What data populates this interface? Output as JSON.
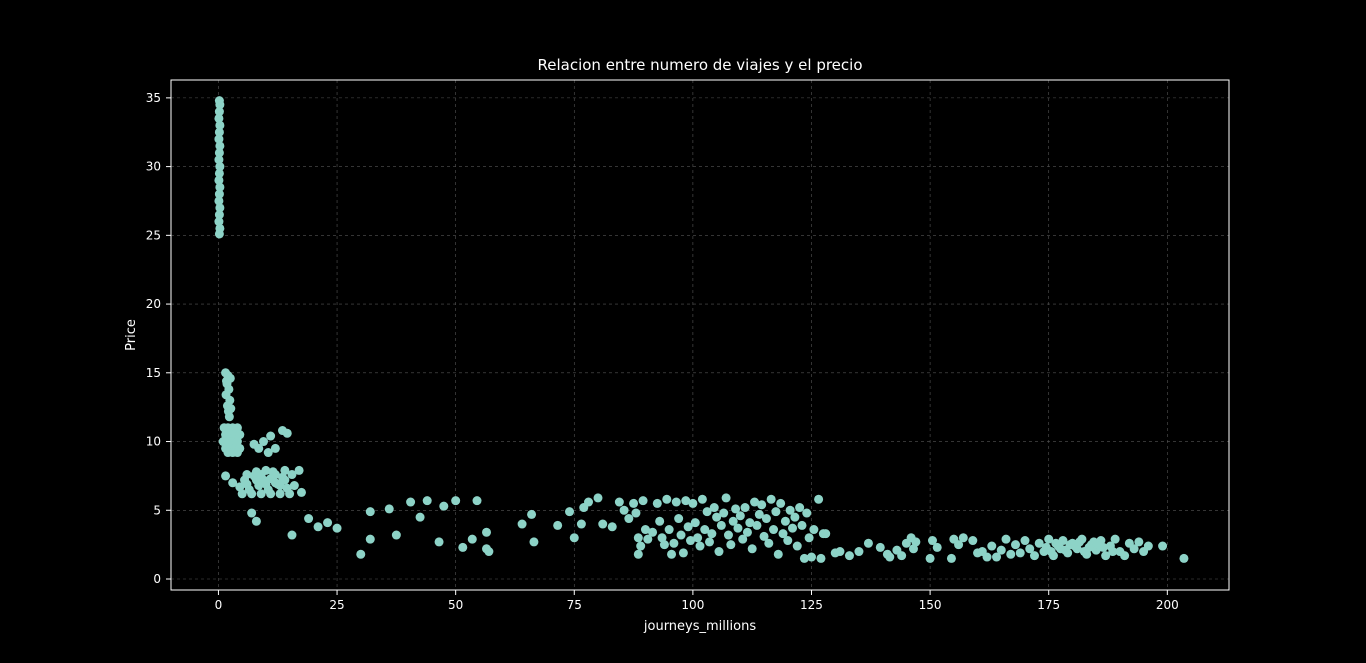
{
  "chart_data": {
    "type": "scatter",
    "title": "Relacion entre numero de viajes y el precio",
    "xlabel": "journeys_millions",
    "ylabel": "Price",
    "xlim": [
      -10,
      213
    ],
    "ylim": [
      -0.8,
      36.3
    ],
    "xticks": [
      0,
      25,
      50,
      75,
      100,
      125,
      150,
      175,
      200
    ],
    "yticks": [
      0,
      5,
      10,
      15,
      20,
      25,
      30,
      35
    ],
    "grid": true,
    "point_color": "#8dd3c7",
    "background": "#000000",
    "points": [
      [
        0.2,
        34.8
      ],
      [
        0.3,
        34.5
      ],
      [
        0.2,
        34.0
      ],
      [
        0.1,
        33.5
      ],
      [
        0.3,
        33.0
      ],
      [
        0.2,
        32.5
      ],
      [
        0.1,
        32.0
      ],
      [
        0.3,
        31.5
      ],
      [
        0.2,
        31.0
      ],
      [
        0.1,
        30.5
      ],
      [
        0.3,
        30.0
      ],
      [
        0.2,
        29.5
      ],
      [
        0.1,
        29.0
      ],
      [
        0.3,
        28.5
      ],
      [
        0.2,
        28.0
      ],
      [
        0.1,
        27.5
      ],
      [
        0.3,
        27.0
      ],
      [
        0.2,
        26.5
      ],
      [
        0.1,
        26.0
      ],
      [
        0.3,
        25.5
      ],
      [
        0.2,
        25.1
      ],
      [
        1.5,
        15.0
      ],
      [
        2.0,
        14.8
      ],
      [
        2.5,
        14.6
      ],
      [
        1.8,
        14.2
      ],
      [
        2.2,
        13.8
      ],
      [
        1.6,
        13.4
      ],
      [
        2.4,
        13.0
      ],
      [
        1.9,
        12.6
      ],
      [
        2.1,
        12.2
      ],
      [
        2.3,
        11.8
      ],
      [
        1.7,
        14.4
      ],
      [
        2.6,
        12.4
      ],
      [
        1.2,
        11.0
      ],
      [
        2.0,
        11.0
      ],
      [
        3.0,
        11.0
      ],
      [
        4.0,
        11.0
      ],
      [
        1.5,
        10.5
      ],
      [
        2.5,
        10.5
      ],
      [
        3.5,
        10.5
      ],
      [
        4.5,
        10.5
      ],
      [
        1.0,
        10.0
      ],
      [
        2.0,
        10.0
      ],
      [
        3.0,
        10.0
      ],
      [
        4.0,
        10.0
      ],
      [
        1.5,
        9.5
      ],
      [
        2.5,
        9.5
      ],
      [
        3.5,
        9.5
      ],
      [
        4.5,
        9.5
      ],
      [
        2.0,
        9.2
      ],
      [
        3.0,
        9.2
      ],
      [
        4.0,
        9.2
      ],
      [
        7.5,
        9.8
      ],
      [
        8.5,
        9.5
      ],
      [
        9.5,
        10.0
      ],
      [
        11.0,
        10.4
      ],
      [
        10.5,
        9.2
      ],
      [
        12.0,
        9.5
      ],
      [
        13.5,
        10.8
      ],
      [
        14.5,
        10.6
      ],
      [
        1.5,
        7.5
      ],
      [
        3.0,
        7.0
      ],
      [
        4.5,
        6.7
      ],
      [
        5.5,
        7.2
      ],
      [
        6.5,
        6.5
      ],
      [
        7.5,
        7.5
      ],
      [
        8.5,
        6.8
      ],
      [
        9.5,
        7.2
      ],
      [
        10.5,
        6.5
      ],
      [
        11.5,
        7.8
      ],
      [
        12.5,
        6.9
      ],
      [
        13.5,
        7.4
      ],
      [
        14.5,
        6.6
      ],
      [
        15.5,
        7.6
      ],
      [
        5.0,
        6.2
      ],
      [
        6.0,
        6.9
      ],
      [
        7.0,
        6.2
      ],
      [
        8.0,
        7.8
      ],
      [
        9.0,
        6.2
      ],
      [
        10.0,
        7.9
      ],
      [
        11.0,
        6.2
      ],
      [
        12.0,
        7.0
      ],
      [
        13.0,
        6.2
      ],
      [
        14.0,
        7.9
      ],
      [
        15.0,
        6.2
      ],
      [
        16.0,
        6.8
      ],
      [
        17.0,
        7.9
      ],
      [
        17.5,
        6.3
      ],
      [
        6.0,
        7.6
      ],
      [
        8.0,
        7.2
      ],
      [
        10.0,
        6.9
      ],
      [
        12.0,
        7.6
      ],
      [
        14.0,
        7.2
      ],
      [
        9.0,
        7.6
      ],
      [
        11.0,
        7.3
      ],
      [
        13.0,
        6.8
      ],
      [
        7.0,
        4.8
      ],
      [
        8.0,
        4.2
      ],
      [
        15.5,
        3.2
      ],
      [
        19.0,
        4.4
      ],
      [
        21.0,
        3.8
      ],
      [
        23.0,
        4.1
      ],
      [
        25.0,
        3.7
      ],
      [
        30.0,
        1.8
      ],
      [
        32.0,
        2.9
      ],
      [
        32.0,
        4.9
      ],
      [
        36.0,
        5.1
      ],
      [
        37.5,
        3.2
      ],
      [
        40.5,
        5.6
      ],
      [
        42.5,
        4.5
      ],
      [
        44.0,
        5.7
      ],
      [
        46.5,
        2.7
      ],
      [
        47.5,
        5.3
      ],
      [
        50.0,
        5.7
      ],
      [
        51.5,
        2.3
      ],
      [
        53.5,
        2.9
      ],
      [
        54.5,
        5.7
      ],
      [
        56.5,
        3.4
      ],
      [
        57.0,
        2.0
      ],
      [
        56.5,
        2.2
      ],
      [
        64.0,
        4.0
      ],
      [
        66.0,
        4.7
      ],
      [
        66.5,
        2.7
      ],
      [
        71.5,
        3.9
      ],
      [
        74.0,
        4.9
      ],
      [
        75.0,
        3.0
      ],
      [
        76.5,
        4.0
      ],
      [
        77.0,
        5.2
      ],
      [
        78.0,
        5.6
      ],
      [
        80.0,
        5.9
      ],
      [
        81.0,
        4.0
      ],
      [
        83.0,
        3.8
      ],
      [
        84.5,
        5.6
      ],
      [
        85.5,
        5.0
      ],
      [
        86.5,
        4.4
      ],
      [
        87.5,
        5.5
      ],
      [
        88.0,
        4.8
      ],
      [
        88.5,
        3.0
      ],
      [
        89.0,
        2.4
      ],
      [
        88.5,
        1.8
      ],
      [
        89.5,
        5.7
      ],
      [
        90.0,
        3.6
      ],
      [
        90.5,
        2.9
      ],
      [
        91.5,
        3.4
      ],
      [
        92.5,
        5.5
      ],
      [
        93.0,
        4.2
      ],
      [
        93.5,
        3.0
      ],
      [
        94.0,
        2.5
      ],
      [
        94.5,
        5.8
      ],
      [
        95.0,
        3.6
      ],
      [
        95.5,
        1.8
      ],
      [
        96.0,
        2.6
      ],
      [
        96.5,
        5.6
      ],
      [
        97.0,
        4.4
      ],
      [
        97.5,
        3.2
      ],
      [
        98.0,
        1.9
      ],
      [
        98.5,
        5.7
      ],
      [
        99.0,
        3.8
      ],
      [
        99.5,
        2.8
      ],
      [
        100.0,
        5.5
      ],
      [
        100.5,
        4.1
      ],
      [
        101.0,
        3.0
      ],
      [
        101.5,
        2.4
      ],
      [
        102.0,
        5.8
      ],
      [
        102.5,
        3.6
      ],
      [
        103.0,
        4.9
      ],
      [
        103.5,
        2.7
      ],
      [
        104.0,
        3.3
      ],
      [
        104.5,
        5.2
      ],
      [
        105.0,
        4.5
      ],
      [
        105.5,
        2.0
      ],
      [
        106.0,
        3.9
      ],
      [
        106.5,
        4.8
      ],
      [
        107.0,
        5.9
      ],
      [
        107.5,
        3.2
      ],
      [
        108.0,
        2.5
      ],
      [
        108.5,
        4.2
      ],
      [
        109.0,
        5.1
      ],
      [
        109.5,
        3.7
      ],
      [
        110.0,
        4.6
      ],
      [
        110.5,
        2.9
      ],
      [
        111.0,
        5.2
      ],
      [
        111.5,
        3.4
      ],
      [
        112.0,
        4.1
      ],
      [
        112.5,
        2.2
      ],
      [
        113.0,
        5.6
      ],
      [
        113.5,
        3.9
      ],
      [
        114.0,
        4.7
      ],
      [
        114.5,
        5.4
      ],
      [
        115.0,
        3.1
      ],
      [
        115.5,
        4.4
      ],
      [
        116.0,
        2.6
      ],
      [
        116.5,
        5.8
      ],
      [
        117.0,
        3.6
      ],
      [
        117.5,
        4.9
      ],
      [
        118.0,
        1.8
      ],
      [
        118.5,
        5.5
      ],
      [
        119.0,
        3.3
      ],
      [
        119.5,
        4.2
      ],
      [
        120.0,
        2.8
      ],
      [
        120.5,
        5.0
      ],
      [
        121.0,
        3.7
      ],
      [
        121.5,
        4.5
      ],
      [
        122.0,
        2.4
      ],
      [
        122.5,
        5.2
      ],
      [
        123.0,
        3.9
      ],
      [
        123.5,
        1.5
      ],
      [
        124.0,
        4.8
      ],
      [
        124.5,
        3.0
      ],
      [
        125.0,
        1.6
      ],
      [
        125.5,
        3.6
      ],
      [
        126.5,
        5.8
      ],
      [
        127.0,
        1.5
      ],
      [
        127.5,
        3.3
      ],
      [
        128.0,
        3.3
      ],
      [
        130.0,
        1.9
      ],
      [
        131.0,
        2.0
      ],
      [
        133.0,
        1.7
      ],
      [
        135.0,
        2.0
      ],
      [
        137.0,
        2.6
      ],
      [
        139.5,
        2.3
      ],
      [
        141.0,
        1.8
      ],
      [
        141.5,
        1.6
      ],
      [
        143.0,
        2.1
      ],
      [
        144.0,
        1.7
      ],
      [
        145.0,
        2.6
      ],
      [
        146.0,
        3.0
      ],
      [
        146.5,
        2.2
      ],
      [
        147.0,
        2.7
      ],
      [
        150.0,
        1.5
      ],
      [
        150.5,
        2.8
      ],
      [
        151.5,
        2.3
      ],
      [
        154.5,
        1.5
      ],
      [
        155.0,
        2.9
      ],
      [
        156.0,
        2.5
      ],
      [
        157.0,
        3.0
      ],
      [
        159.0,
        2.8
      ],
      [
        160.0,
        1.9
      ],
      [
        161.0,
        2.0
      ],
      [
        162.0,
        1.6
      ],
      [
        163.0,
        2.4
      ],
      [
        164.0,
        1.6
      ],
      [
        165.0,
        2.1
      ],
      [
        166.0,
        2.9
      ],
      [
        167.0,
        1.8
      ],
      [
        168.0,
        2.5
      ],
      [
        169.0,
        1.9
      ],
      [
        170.0,
        2.8
      ],
      [
        171.0,
        2.2
      ],
      [
        172.0,
        1.7
      ],
      [
        173.0,
        2.6
      ],
      [
        174.0,
        2.0
      ],
      [
        175.0,
        2.9
      ],
      [
        176.0,
        1.7
      ],
      [
        177.0,
        2.4
      ],
      [
        178.0,
        2.8
      ],
      [
        179.0,
        1.9
      ],
      [
        180.0,
        2.6
      ],
      [
        181.0,
        2.2
      ],
      [
        182.0,
        2.9
      ],
      [
        183.0,
        1.8
      ],
      [
        184.0,
        2.5
      ],
      [
        185.0,
        2.1
      ],
      [
        186.0,
        2.8
      ],
      [
        187.0,
        1.7
      ],
      [
        188.0,
        2.4
      ],
      [
        189.0,
        2.9
      ],
      [
        190.0,
        2.0
      ],
      [
        191.0,
        1.7
      ],
      [
        192.0,
        2.6
      ],
      [
        193.0,
        2.2
      ],
      [
        194.0,
        2.7
      ],
      [
        195.0,
        2.0
      ],
      [
        196.0,
        2.4
      ],
      [
        199.0,
        2.4
      ],
      [
        203.5,
        1.5
      ],
      [
        174.5,
        2.3
      ],
      [
        176.5,
        2.6
      ],
      [
        178.5,
        2.1
      ],
      [
        180.5,
        2.4
      ],
      [
        182.5,
        2.0
      ],
      [
        184.5,
        2.7
      ],
      [
        186.5,
        2.3
      ],
      [
        188.5,
        2.0
      ],
      [
        175.5,
        2.0
      ],
      [
        177.5,
        2.2
      ],
      [
        179.5,
        2.5
      ],
      [
        181.5,
        2.7
      ],
      [
        183.5,
        2.3
      ],
      [
        185.5,
        2.5
      ]
    ]
  }
}
